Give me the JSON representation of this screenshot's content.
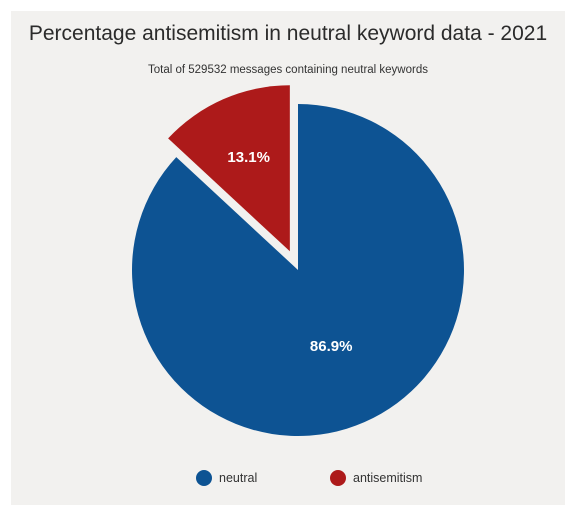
{
  "chart_data": {
    "type": "pie",
    "title": "Percentage antisemitism in neutral keyword data - 2021",
    "subtitle": "Total of 529532 messages containing neutral keywords",
    "slices": [
      {
        "name": "neutral",
        "value": 86.9,
        "label": "86.9%",
        "color": "#0d5393"
      },
      {
        "name": "antisemitism",
        "value": 13.1,
        "label": "13.1%",
        "color": "#ad1a1a",
        "exploded": true
      }
    ],
    "legend": "bottom"
  }
}
